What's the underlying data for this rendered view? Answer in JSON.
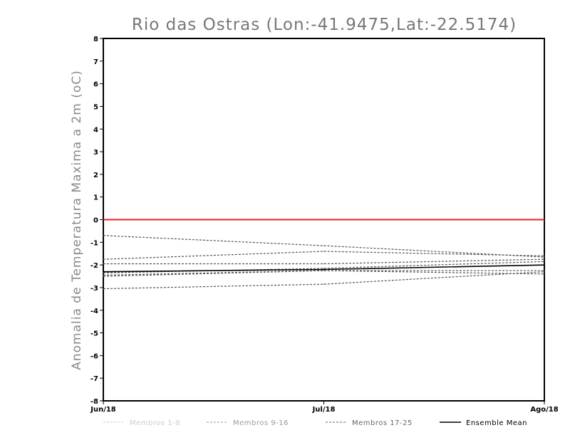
{
  "chart_data": {
    "type": "line",
    "title": "Rio das Ostras (Lon:-41.9475,Lat:-22.5174)",
    "ylabel": "Anomalia de Temperatura Maxima a 2m (oC)",
    "xlabel": "",
    "categories": [
      "Jun/18",
      "Jul/18",
      "Ago/18"
    ],
    "ylim": [
      -8,
      8
    ],
    "yticks": [
      8,
      7,
      6,
      5,
      4,
      3,
      2,
      1,
      0,
      -1,
      -2,
      -3,
      -4,
      -5,
      -6,
      -7,
      -8
    ],
    "zero_line_color": "#ee2222",
    "member_color": "#555555",
    "mean_color": "#000000",
    "members": [
      {
        "values": [
          -0.7,
          -1.15,
          -1.65
        ]
      },
      {
        "values": [
          -1.75,
          -1.4,
          -1.6
        ]
      },
      {
        "values": [
          -1.95,
          -1.95,
          -1.75
        ]
      },
      {
        "values": [
          -2.35,
          -2.15,
          -1.85
        ]
      },
      {
        "values": [
          -2.45,
          -2.25,
          -2.25
        ]
      },
      {
        "values": [
          -2.5,
          -2.25,
          -2.4
        ]
      },
      {
        "values": [
          -3.05,
          -2.85,
          -2.3
        ]
      }
    ],
    "ensemble_mean": {
      "values": [
        -2.3,
        -2.2,
        -2.0
      ]
    },
    "legend": [
      {
        "label": "Membros 1-8",
        "color": "#cccccc",
        "style": "dashed"
      },
      {
        "label": "Membros 9-16",
        "color": "#999999",
        "style": "dashed"
      },
      {
        "label": "Membros 17-25",
        "color": "#666666",
        "style": "dashed"
      },
      {
        "label": "Ensemble Mean",
        "color": "#000000",
        "style": "solid"
      }
    ],
    "legend_position": "bottom"
  }
}
